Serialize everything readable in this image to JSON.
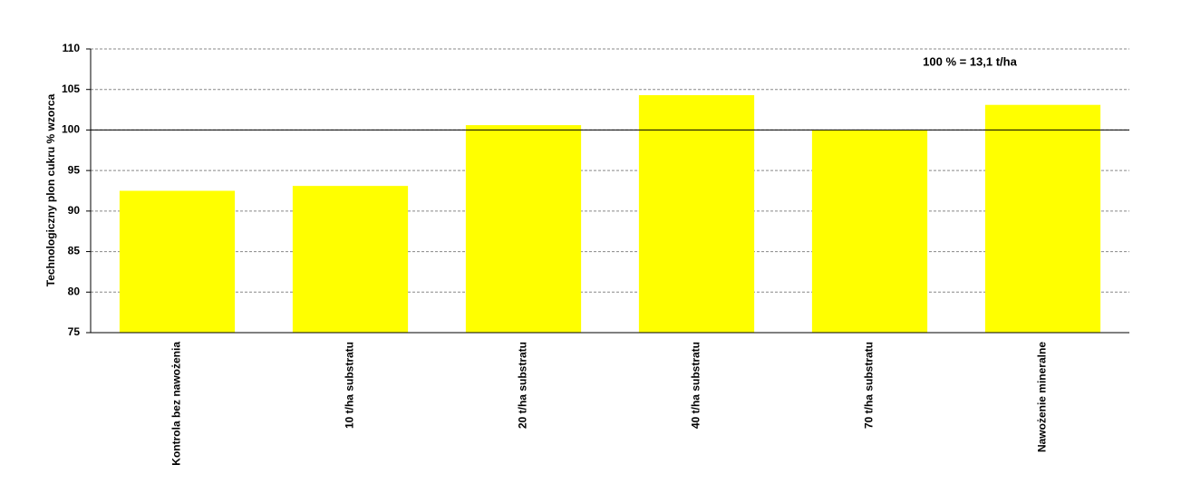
{
  "chart_data": {
    "type": "bar",
    "y_label": "Technologiczny plon cukru % wzorca",
    "annotation": "100 % = 13,1 t/ha",
    "categories": [
      "Kontrola bez nawożenia",
      "10 t/ha substratu",
      "20 t/ha substratu",
      "40 t/ha substratu",
      "70 t/ha substratu",
      "Nawożenie mineralne"
    ],
    "values": [
      92.5,
      93.1,
      100.6,
      104.3,
      100.0,
      103.1
    ],
    "color": "#ffff00",
    "ylim": [
      75,
      110
    ],
    "yticks": [
      75,
      80,
      85,
      90,
      95,
      100,
      105,
      110
    ],
    "grid": true,
    "reference_line": 100
  }
}
